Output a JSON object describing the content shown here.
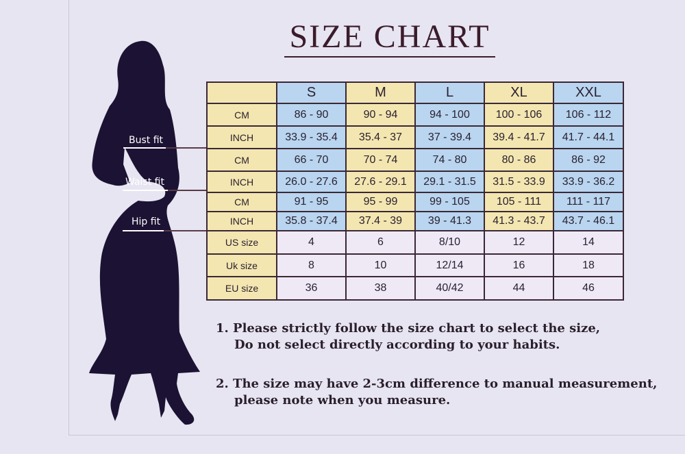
{
  "title": "SIZE CHART",
  "fit_labels": {
    "bust": "Bust fit",
    "waist": "Waist fit",
    "hip": "Hip fit"
  },
  "table": {
    "headers": [
      "",
      "S",
      "M",
      "L",
      "XL",
      "XXL"
    ],
    "rows": [
      {
        "label": "CM",
        "values": [
          "86 - 90",
          "90 - 94",
          "94 - 100",
          "100 - 106",
          "106 - 112"
        ]
      },
      {
        "label": "INCH",
        "values": [
          "33.9 - 35.4",
          "35.4 - 37",
          "37 - 39.4",
          "39.4 - 41.7",
          "41.7 - 44.1"
        ]
      },
      {
        "label": "CM",
        "values": [
          "66 - 70",
          "70 - 74",
          "74 - 80",
          "80 - 86",
          "86 - 92"
        ]
      },
      {
        "label": "INCH",
        "values": [
          "26.0 - 27.6",
          "27.6 - 29.1",
          "29.1 - 31.5",
          "31.5 - 33.9",
          "33.9 - 36.2"
        ]
      },
      {
        "label": "CM",
        "values": [
          "91 - 95",
          "95 - 99",
          "99 - 105",
          "105 - 111",
          "111 - 117"
        ]
      },
      {
        "label": "INCH",
        "values": [
          "35.8 - 37.4",
          "37.4 - 39",
          "39 - 41.3",
          "41.3 - 43.7",
          "43.7 - 46.1"
        ]
      },
      {
        "label": "US size",
        "values": [
          "4",
          "6",
          "8/10",
          "12",
          "14"
        ]
      },
      {
        "label": "Uk size",
        "values": [
          "8",
          "10",
          "12/14",
          "16",
          "18"
        ]
      },
      {
        "label": "EU size",
        "values": [
          "36",
          "38",
          "40/42",
          "44",
          "46"
        ]
      }
    ]
  },
  "notes": [
    {
      "line1": "1.  Please strictly follow the size chart to select the size,",
      "line2": "Do not select directly according to your habits."
    },
    {
      "line1": "2.  The size may have 2-3cm difference  to manual measurement,",
      "line2": "please note when you measure."
    }
  ],
  "colors": {
    "yellow": "#f3e6b0",
    "blue": "#b9d5ef",
    "lavender": "#efe9f6",
    "silhouette": "#1c1233"
  }
}
